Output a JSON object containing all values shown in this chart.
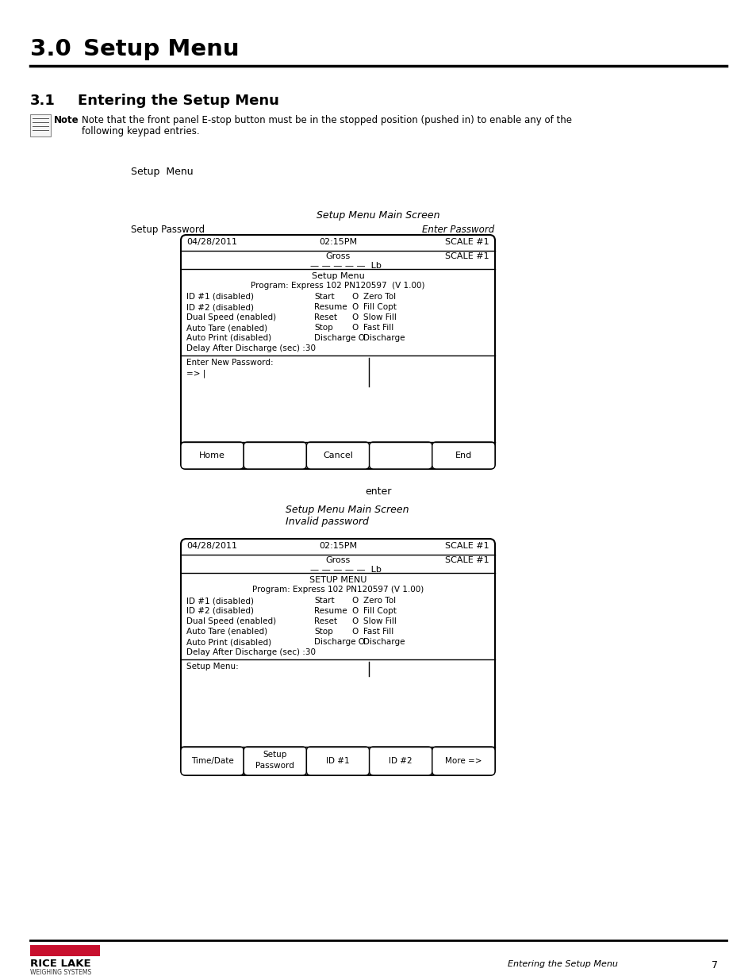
{
  "title_num": "3.0",
  "title_text": "Setup Menu",
  "subtitle_num": "3.1",
  "subtitle_text": "Entering the Setup Menu",
  "note_line1": "Note that the front panel E-stop button must be in the stopped position (pushed in) to enable any of the",
  "note_line2": "following keypad entries.",
  "setup_menu_label": "Setup  Menu",
  "screen1_caption": "Setup Menu Main Screen",
  "screen1_left_label": "Setup Password",
  "screen1_right_label": "Enter Password",
  "screen1_date": "04/28/2011",
  "screen1_time": "02:15PM",
  "screen1_scale1": "SCALE #1",
  "screen1_gross": "Gross",
  "screen1_lb": "Lb",
  "screen1_dashes": "— — — — —",
  "screen1_scale2": "SCALE #1",
  "screen1_menu_title": "Setup Menu",
  "screen1_program": "Program: Express 102 PN120597  (V 1.00)",
  "screen1_rows": [
    [
      "ID #1 (disabled)",
      "Start",
      "O",
      "Zero Tol"
    ],
    [
      "ID #2 (disabled)",
      "Resume",
      "O",
      "Fill Copt"
    ],
    [
      "Dual Speed (enabled)",
      "Reset",
      "O",
      "Slow Fill"
    ],
    [
      "Auto Tare (enabled)",
      "Stop",
      "O",
      "Fast Fill"
    ],
    [
      "Auto Print (disabled)",
      "Discharge O",
      "Discharge"
    ]
  ],
  "screen1_delay": "Delay After Discharge (sec) :30",
  "screen1_pwd_label": "Enter New Password:",
  "screen1_pwd_prompt": "=> |",
  "screen1_buttons": [
    "Home",
    "",
    "Cancel",
    "",
    "End"
  ],
  "enter_label": "enter",
  "screen2_caption1": "Setup Menu Main Screen",
  "screen2_caption2": "Invalid password",
  "screen2_date": "04/28/2011",
  "screen2_time": "02:15PM",
  "screen2_scale1": "SCALE #1",
  "screen2_gross": "Gross",
  "screen2_lb": "Lb",
  "screen2_dashes": "— — — — —",
  "screen2_scale2": "SCALE #1",
  "screen2_menu_title": "SETUP MENU",
  "screen2_program": "Program: Express 102 PN120597 (V 1.00)",
  "screen2_rows": [
    [
      "ID #1 (disabled)",
      "Start",
      "O",
      "Zero Tol"
    ],
    [
      "ID #2 (disabled)",
      "Resume",
      "O",
      "Fill Copt"
    ],
    [
      "Dual Speed (enabled)",
      "Reset",
      "O",
      "Slow Fill"
    ],
    [
      "Auto Tare (enabled)",
      "Stop",
      "O",
      "Fast Fill"
    ],
    [
      "Auto Print (disabled)",
      "Discharge O",
      "Discharge"
    ]
  ],
  "screen2_delay": "Delay After Discharge (sec) :30",
  "screen2_menu_label": "Setup Menu:",
  "screen2_buttons": [
    "Time/Date",
    "Setup\nPassword",
    "ID #1",
    "ID #2",
    "More =>"
  ],
  "footer_right_text": "Entering the Setup Menu",
  "footer_page": "7",
  "bg_color": "#ffffff",
  "line_color": "#000000",
  "red_color": "#c8102e",
  "note_icon_lines": 4
}
